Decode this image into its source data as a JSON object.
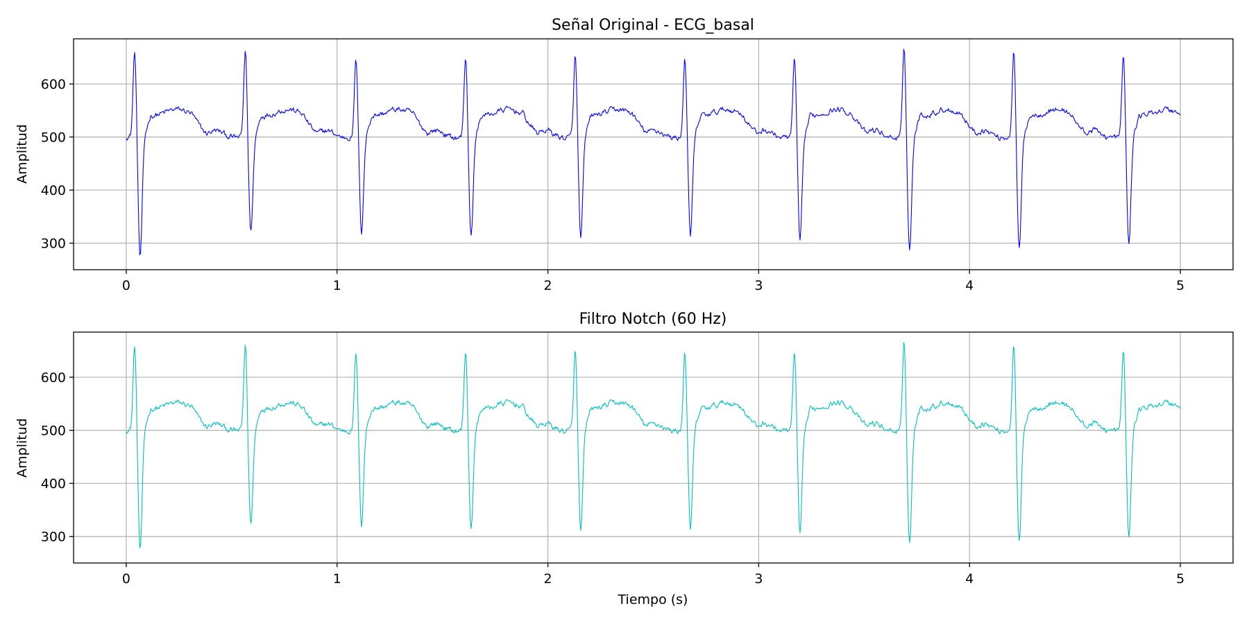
{
  "chart_data": [
    {
      "type": "line",
      "title": "Señal Original - ECG_basal",
      "xlabel": "",
      "ylabel": "Amplitud",
      "xlim": [
        -0.25,
        5.25
      ],
      "ylim": [
        250,
        685
      ],
      "xticks": [
        0,
        1,
        2,
        3,
        4,
        5
      ],
      "xtick_labels": [
        "0",
        "1",
        "2",
        "3",
        "4",
        "5"
      ],
      "yticks": [
        300,
        400,
        500,
        600
      ],
      "ytick_labels": [
        "300",
        "400",
        "500",
        "600"
      ],
      "grid": true,
      "series": [
        {
          "color": "#0000ff",
          "duration_s": 5,
          "beat_times_s": [
            0.04,
            0.565,
            1.09,
            1.61,
            2.13,
            2.65,
            3.17,
            3.69,
            4.21,
            4.73
          ],
          "r_peak_amplitudes": [
            665,
            667,
            650,
            655,
            655,
            653,
            650,
            665,
            665,
            655
          ],
          "s_trough_amplitudes": [
            272,
            320,
            322,
            311,
            310,
            312,
            300,
            287,
            286,
            296
          ],
          "baseline": 500
        }
      ]
    },
    {
      "type": "line",
      "title": "Filtro Notch (60 Hz)",
      "xlabel": "Tiempo (s)",
      "ylabel": "Amplitud",
      "xlim": [
        -0.25,
        5.25
      ],
      "ylim": [
        250,
        685
      ],
      "xticks": [
        0,
        1,
        2,
        3,
        4,
        5
      ],
      "xtick_labels": [
        "0",
        "1",
        "2",
        "3",
        "4",
        "5"
      ],
      "yticks": [
        300,
        400,
        500,
        600
      ],
      "ytick_labels": [
        "300",
        "400",
        "500",
        "600"
      ],
      "grid": true,
      "series": [
        {
          "color": "#00bfbf",
          "duration_s": 5,
          "beat_times_s": [
            0.04,
            0.565,
            1.09,
            1.61,
            2.13,
            2.65,
            3.17,
            3.69,
            4.21,
            4.73
          ],
          "r_peak_amplitudes": [
            663,
            666,
            649,
            654,
            652,
            652,
            648,
            665,
            664,
            652
          ],
          "s_trough_amplitudes": [
            273,
            320,
            323,
            311,
            311,
            312,
            301,
            288,
            287,
            296
          ],
          "baseline": 500
        }
      ]
    }
  ]
}
